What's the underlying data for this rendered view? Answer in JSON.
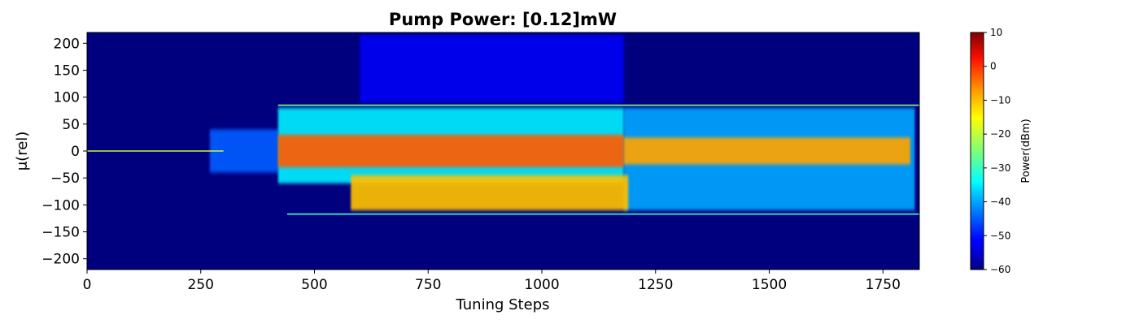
{
  "chart_data": {
    "type": "heatmap",
    "title": "Pump Power: [0.12]mW",
    "xlabel": "Tuning Steps",
    "ylabel": "μ(rel)",
    "xlim": [
      0,
      1830
    ],
    "ylim": [
      -220,
      220
    ],
    "xticks": [
      0,
      250,
      500,
      750,
      1000,
      1250,
      1500,
      1750
    ],
    "yticks": [
      200,
      150,
      100,
      50,
      0,
      -50,
      -100,
      -150,
      -200
    ],
    "grid": false,
    "colormap": "jet",
    "colorbar": {
      "label": "Power(dBm)",
      "range": [
        -60,
        10
      ],
      "ticks": [
        10,
        0,
        -10,
        -20,
        -30,
        -40,
        -50,
        -60
      ]
    },
    "regions": [
      {
        "name": "pump line",
        "x": [
          0,
          300
        ],
        "mu": [
          0,
          0
        ],
        "level_dbm": -20
      },
      {
        "name": "primary comb onset",
        "x": [
          270,
          420
        ],
        "mu": [
          -40,
          40
        ],
        "level_dbm": -45
      },
      {
        "name": "chaotic comb core",
        "x": [
          420,
          1180
        ],
        "mu": [
          -30,
          30
        ],
        "level_dbm": -5
      },
      {
        "name": "chaotic comb wings",
        "x": [
          420,
          1180
        ],
        "mu": [
          -60,
          80
        ],
        "level_dbm": -35
      },
      {
        "name": "lower lobe",
        "x": [
          580,
          1190
        ],
        "mu": [
          -110,
          -45
        ],
        "level_dbm": -12
      },
      {
        "name": "upper band noise",
        "x": [
          600,
          1180
        ],
        "mu": [
          90,
          215
        ],
        "level_dbm": -52
      },
      {
        "name": "soliton core",
        "x": [
          1180,
          1810
        ],
        "mu": [
          -25,
          25
        ],
        "level_dbm": -10
      },
      {
        "name": "soliton envelope",
        "x": [
          1180,
          1820
        ],
        "mu": [
          -110,
          80
        ],
        "level_dbm": -40
      },
      {
        "name": "upper edge line",
        "x": [
          420,
          1830
        ],
        "mu": [
          85,
          85
        ],
        "level_dbm": -25
      },
      {
        "name": "lower edge line",
        "x": [
          440,
          1830
        ],
        "mu": [
          -117,
          -117
        ],
        "level_dbm": -30
      }
    ]
  }
}
